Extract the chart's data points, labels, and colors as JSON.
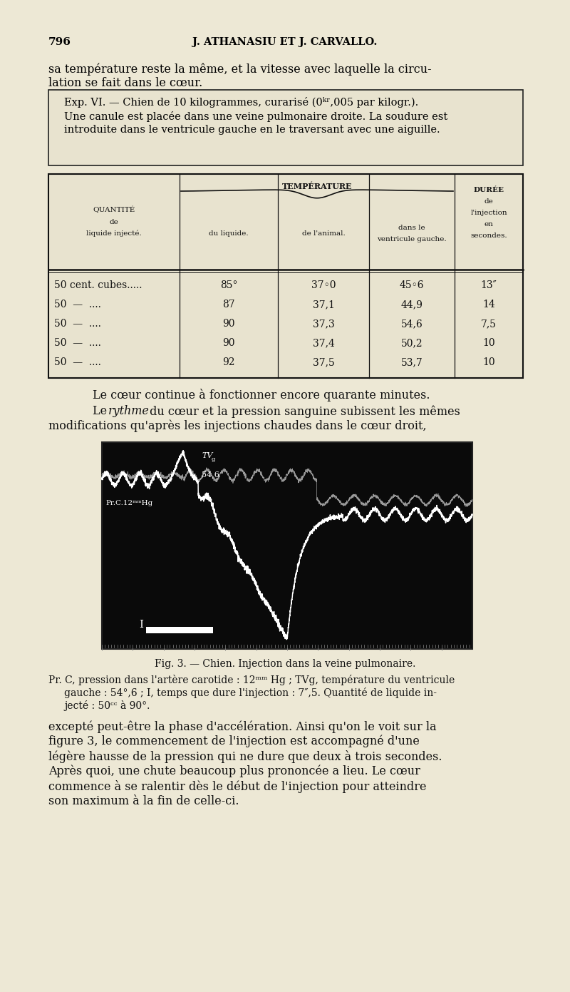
{
  "page_bg": "#ede8d5",
  "page_number": "796",
  "journal_header": "J. ATHANASIU ET J. CARVALLO.",
  "table_rows": [
    [
      "50 cent. cubes.....",
      "85°",
      "37◦0",
      "45◦6",
      "13″"
    ],
    [
      "50  —  ....",
      "87",
      "37,1",
      "44,9",
      "14"
    ],
    [
      "50  —  ....",
      "90",
      "37,3",
      "54,6",
      "7,5"
    ],
    [
      "50  —  ....",
      "90",
      "37,4",
      "50,2",
      "10"
    ],
    [
      "50  —  ....",
      "92",
      "37,5",
      "53,7",
      "10"
    ]
  ]
}
